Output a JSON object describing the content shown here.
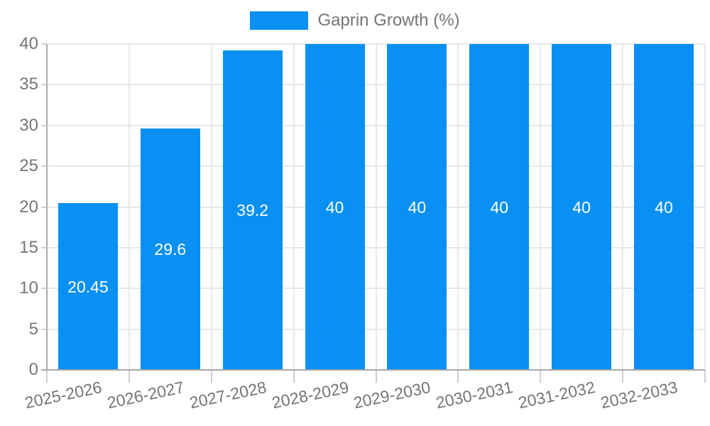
{
  "chart_data": {
    "type": "bar",
    "title": "",
    "legend": {
      "label": "Gaprin Growth (%)",
      "position": "top-center"
    },
    "categories": [
      "2025-2026",
      "2026-2027",
      "2027-2028",
      "2028-2029",
      "2029-2030",
      "2030-2031",
      "2031-2032",
      "2032-2033"
    ],
    "series": [
      {
        "name": "Gaprin Growth (%)",
        "values": [
          20.45,
          29.6,
          39.2,
          40,
          40,
          40,
          40,
          40
        ]
      }
    ],
    "bar_labels": [
      "20.45",
      "29.6",
      "39.2",
      "40",
      "40",
      "40",
      "40",
      "40"
    ],
    "xlabel": "",
    "ylabel": "",
    "ylim": [
      0,
      40
    ],
    "yticks": [
      0,
      5,
      10,
      15,
      20,
      25,
      30,
      35,
      40
    ],
    "grid": true,
    "x_label_rotation_deg": -12,
    "colors": {
      "bar": "#0990f2",
      "grid": "#e8e8e8",
      "axis": "#a8a8a8",
      "tick": "#cfcfcf",
      "text": "#757575",
      "value_label": "#ffffff",
      "background": "#ffffff"
    }
  }
}
